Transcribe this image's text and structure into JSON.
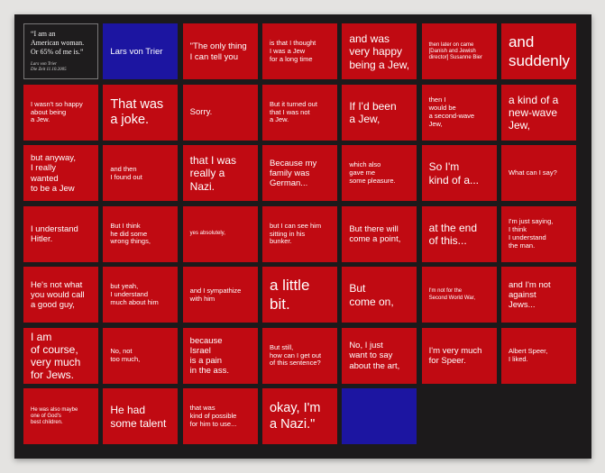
{
  "artwork": {
    "intro": {
      "quote": "“I am an\nAmerican woman.\nOr 65% of me is.”",
      "source": "Lars von Trier\nDie Zeit 11.10.2005"
    },
    "cells": [
      "Lars von Trier",
      "\"The only thing\nI can tell you",
      "is that I thought\nI was a Jew\nfor a long time",
      "and was\nvery happy\nbeing a Jew,",
      "then later on came\n[Danish and Jewish\ndirector] Susanne Bier",
      "and\nsuddenly",
      "I wasn't so happy\nabout being\na Jew.",
      "That was\na joke.",
      "Sorry.",
      "But it turned out\nthat I was not\na Jew.",
      "If I'd been\na Jew,",
      "then I\nwould be\na second-wave\nJew,",
      "a kind of a\nnew-wave\nJew,",
      "but anyway,\nI really\nwanted\nto be a Jew",
      "and then\nI found out",
      "that I was\nreally a\nNazi.",
      "Because my\nfamily was\nGerman...",
      "which also\ngave me\nsome pleasure.",
      "So I'm\nkind of a...",
      "What can I say?",
      "I understand\nHitler.",
      "But I think\nhe did some\nwrong things,",
      "yes absolutely,",
      "but I can see him\nsitting in his\nbunker.",
      "But there will\ncome a point,",
      "at the end\nof this...",
      "I'm just saying,\nI think\nI understand\nthe man.",
      "He's not what\nyou would call\na good guy,",
      "but yeah,\nI understand\nmuch about him",
      "and I sympathize\nwith him",
      "a little\nbit.",
      "But\ncome on,",
      "I'm not for the\nSecond World War,",
      "and I'm not\nagainst\nJews...",
      "I am\nof course,\nvery much\nfor Jews.",
      "No, not\ntoo much,",
      "because\nIsrael\nis a pain\nin the ass.",
      "But still,\nhow can I get out\nof this sentence?",
      "No, I just\nwant to say\nabout the art,",
      "I'm very much\nfor Speer.",
      "Albert Speer,\nI liked.",
      "He was also maybe\none of God's\nbest children.",
      "He had\nsome talent",
      "that was\nkind of possible\nfor him to use...",
      "okay, I'm\na Nazi.\"",
      "",
      "",
      ""
    ]
  },
  "colors": {
    "red_panel": "#c00a12",
    "blue_panel": "#1c15a1",
    "frame": "#1c1a1b",
    "wall": "#e4e3e1",
    "text": "#ffffff"
  }
}
